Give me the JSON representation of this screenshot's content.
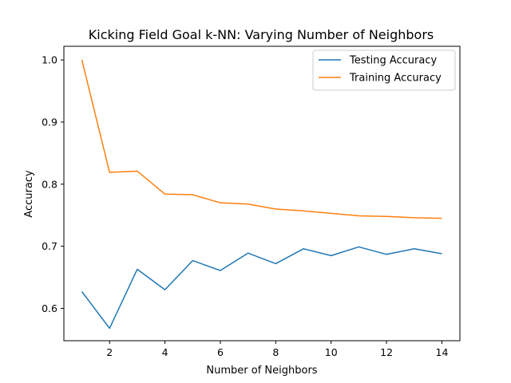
{
  "chart_data": {
    "type": "line",
    "title": "Kicking Field Goal k-NN: Varying Number of Neighbors",
    "xlabel": "Number of Neighbors",
    "ylabel": "Accuracy",
    "x": [
      1,
      2,
      3,
      4,
      5,
      6,
      7,
      8,
      9,
      10,
      11,
      12,
      13,
      14
    ],
    "xlim": [
      0.35,
      14.65
    ],
    "ylim": [
      0.548,
      1.022
    ],
    "xticks": [
      2,
      4,
      6,
      8,
      10,
      12,
      14
    ],
    "xtick_labels": [
      "2",
      "4",
      "6",
      "8",
      "10",
      "12",
      "14"
    ],
    "yticks": [
      0.6,
      0.7,
      0.8,
      0.9,
      1.0
    ],
    "ytick_labels": [
      "0.6",
      "0.7",
      "0.8",
      "0.9",
      "1.0"
    ],
    "grid": false,
    "legend": {
      "position": "top-right"
    },
    "series": [
      {
        "name": "Testing Accuracy",
        "color": "#1f77b4",
        "values": [
          0.627,
          0.568,
          0.663,
          0.63,
          0.677,
          0.661,
          0.689,
          0.672,
          0.696,
          0.685,
          0.699,
          0.687,
          0.696,
          0.688
        ]
      },
      {
        "name": "Training Accuracy",
        "color": "#ff7f0e",
        "values": [
          1.0,
          0.819,
          0.821,
          0.784,
          0.783,
          0.77,
          0.768,
          0.76,
          0.757,
          0.753,
          0.749,
          0.748,
          0.746,
          0.745
        ]
      }
    ]
  }
}
